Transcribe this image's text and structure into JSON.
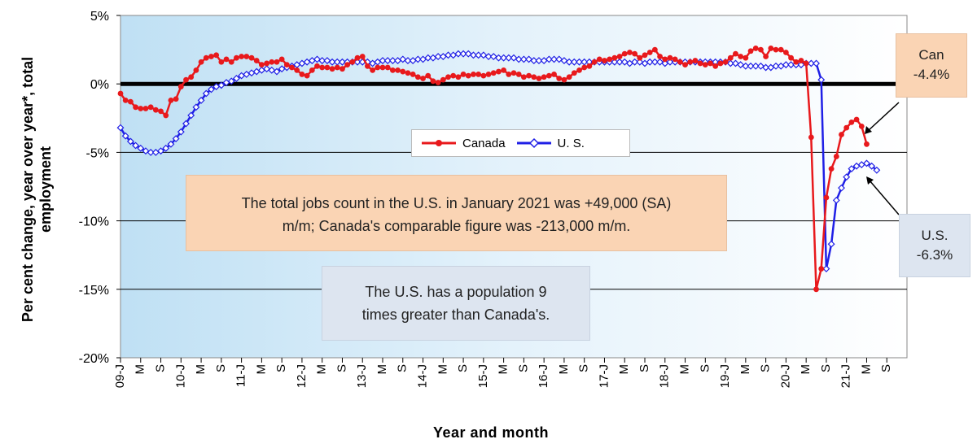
{
  "chart_data": {
    "type": "line",
    "ylabel": "Per cent change, year over year*, total employment",
    "xlabel": "Year and month",
    "ylim": [
      -20,
      5
    ],
    "y_ticks": [
      "5%",
      "0%",
      "-5%",
      "-10%",
      "-15%",
      "-20%"
    ],
    "x_tick_labels": [
      "09-J",
      "M",
      "S",
      "10-J",
      "M",
      "S",
      "11-J",
      "M",
      "S",
      "12-J",
      "M",
      "S",
      "13-J",
      "M",
      "S",
      "14-J",
      "M",
      "S",
      "15-J",
      "M",
      "S",
      "16-J",
      "M",
      "S",
      "17-J",
      "M",
      "S",
      "18-J",
      "M",
      "S",
      "19-J",
      "M",
      "S",
      "20-J",
      "M",
      "S",
      "21-J",
      "M",
      "S"
    ],
    "x_start": "2009-01",
    "legend_placement": "center",
    "grid": "horizontal",
    "series": [
      {
        "name": "Canada",
        "color": "#e8191c",
        "marker": "circle",
        "values": [
          -0.7,
          -1.2,
          -1.3,
          -1.7,
          -1.8,
          -1.8,
          -1.7,
          -1.9,
          -2.0,
          -2.3,
          -1.2,
          -1.1,
          -0.2,
          0.3,
          0.5,
          1.0,
          1.6,
          1.9,
          2.0,
          2.1,
          1.6,
          1.8,
          1.6,
          1.9,
          2.0,
          2.0,
          1.9,
          1.7,
          1.4,
          1.5,
          1.6,
          1.6,
          1.8,
          1.4,
          1.2,
          1.0,
          0.7,
          0.6,
          1.0,
          1.3,
          1.2,
          1.2,
          1.1,
          1.2,
          1.1,
          1.4,
          1.6,
          1.9,
          2.0,
          1.3,
          1.0,
          1.2,
          1.2,
          1.2,
          1.0,
          1.0,
          0.9,
          0.8,
          0.7,
          0.5,
          0.4,
          0.6,
          0.2,
          0.1,
          0.3,
          0.5,
          0.6,
          0.5,
          0.7,
          0.6,
          0.7,
          0.7,
          0.6,
          0.7,
          0.8,
          0.9,
          1.0,
          0.7,
          0.8,
          0.7,
          0.5,
          0.6,
          0.5,
          0.4,
          0.5,
          0.6,
          0.7,
          0.4,
          0.3,
          0.5,
          0.8,
          1.0,
          1.2,
          1.3,
          1.6,
          1.8,
          1.7,
          1.8,
          1.9,
          2.0,
          2.2,
          2.3,
          2.2,
          1.9,
          2.1,
          2.3,
          2.5,
          2.0,
          1.8,
          1.9,
          1.8,
          1.6,
          1.4,
          1.6,
          1.7,
          1.5,
          1.4,
          1.5,
          1.3,
          1.5,
          1.6,
          1.9,
          2.2,
          2.0,
          1.9,
          2.4,
          2.6,
          2.5,
          2.0,
          2.6,
          2.5,
          2.5,
          2.3,
          1.9,
          1.6,
          1.7,
          1.5,
          -3.9,
          -15.0,
          -13.5,
          -8.3,
          -6.2,
          -5.3,
          -3.7,
          -3.2,
          -2.8,
          -2.6,
          -3.1,
          -4.4
        ]
      },
      {
        "name": "U. S.",
        "color": "#1f1fe6",
        "marker": "open-diamond",
        "values": [
          -3.2,
          -3.8,
          -4.2,
          -4.5,
          -4.7,
          -4.9,
          -5.0,
          -5.0,
          -4.9,
          -4.7,
          -4.4,
          -4.0,
          -3.5,
          -2.9,
          -2.3,
          -1.7,
          -1.2,
          -0.7,
          -0.4,
          -0.2,
          -0.1,
          0.1,
          0.2,
          0.4,
          0.6,
          0.7,
          0.8,
          0.9,
          1.0,
          1.1,
          1.0,
          0.9,
          1.1,
          1.2,
          1.3,
          1.4,
          1.5,
          1.6,
          1.7,
          1.8,
          1.7,
          1.7,
          1.6,
          1.6,
          1.6,
          1.6,
          1.6,
          1.6,
          1.6,
          1.6,
          1.5,
          1.6,
          1.7,
          1.7,
          1.7,
          1.7,
          1.8,
          1.7,
          1.7,
          1.8,
          1.8,
          1.9,
          1.9,
          2.0,
          2.0,
          2.1,
          2.1,
          2.2,
          2.2,
          2.2,
          2.1,
          2.1,
          2.1,
          2.0,
          2.0,
          1.9,
          1.9,
          1.9,
          1.9,
          1.8,
          1.8,
          1.8,
          1.7,
          1.7,
          1.7,
          1.8,
          1.8,
          1.8,
          1.7,
          1.6,
          1.6,
          1.6,
          1.6,
          1.6,
          1.6,
          1.6,
          1.6,
          1.6,
          1.6,
          1.6,
          1.6,
          1.5,
          1.6,
          1.6,
          1.5,
          1.6,
          1.6,
          1.6,
          1.5,
          1.6,
          1.6,
          1.6,
          1.6,
          1.6,
          1.6,
          1.6,
          1.6,
          1.6,
          1.6,
          1.6,
          1.6,
          1.5,
          1.5,
          1.4,
          1.3,
          1.3,
          1.3,
          1.3,
          1.2,
          1.2,
          1.3,
          1.3,
          1.4,
          1.4,
          1.4,
          1.4,
          1.5,
          1.5,
          1.5,
          0.3,
          -13.5,
          -11.7,
          -8.5,
          -7.6,
          -6.8,
          -6.2,
          -6.0,
          -5.9,
          -5.8,
          -6.0,
          -6.3
        ]
      }
    ],
    "annotations": [
      {
        "label_lines": [
          "Can",
          "-4.4%"
        ]
      },
      {
        "label_lines": [
          "U.S.",
          "-6.3%"
        ]
      }
    ]
  },
  "notes": {
    "jobs_lines": [
      "The total jobs count in the U.S. in January 2021 was +49,000 (SA)",
      "m/m; Canada's comparable figure was -213,000 m/m."
    ],
    "population_lines": [
      "The U.S. has a population 9",
      "times greater than Canada's."
    ]
  },
  "legend": {
    "canada": "Canada",
    "us": "U. S."
  }
}
